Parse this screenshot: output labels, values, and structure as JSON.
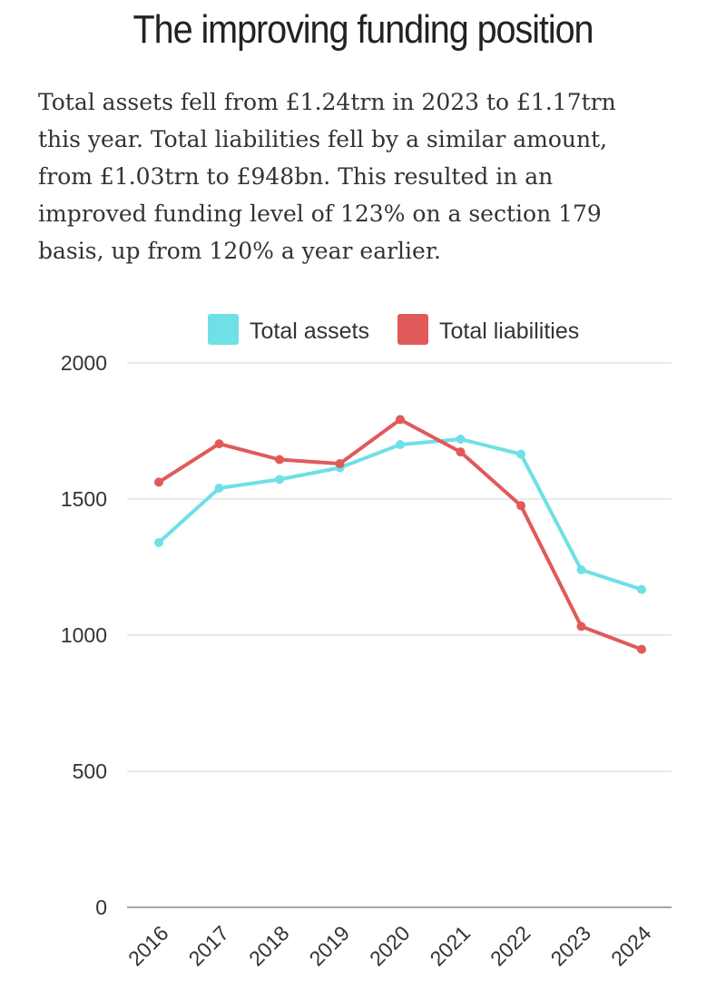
{
  "page": {
    "title": "The improving funding position",
    "intro": "Total assets fell from £1.24trn in 2023 to £1.17trn this year. Total liabilities fell by a similar amount, from £1.03trn to £948bn. This resulted in an improved funding level of 123% on a section 179 basis, up from 120% a year earlier."
  },
  "chart_data": {
    "type": "line",
    "title": "",
    "xlabel": "",
    "ylabel": "",
    "categories": [
      "2016",
      "2017",
      "2018",
      "2019",
      "2020",
      "2021",
      "2022",
      "2023",
      "2024"
    ],
    "ylim": [
      0,
      2000
    ],
    "yticks": [
      0,
      500,
      1000,
      1500,
      2000
    ],
    "grid": true,
    "legend_position": "top",
    "series": [
      {
        "name": "Total assets",
        "color": "#6ee0e6",
        "values": [
          1340,
          1540,
          1572,
          1615,
          1700,
          1720,
          1665,
          1240,
          1168
        ]
      },
      {
        "name": "Total liabilities",
        "color": "#e05a5a",
        "values": [
          1562,
          1703,
          1645,
          1630,
          1792,
          1673,
          1476,
          1032,
          948
        ]
      }
    ]
  }
}
